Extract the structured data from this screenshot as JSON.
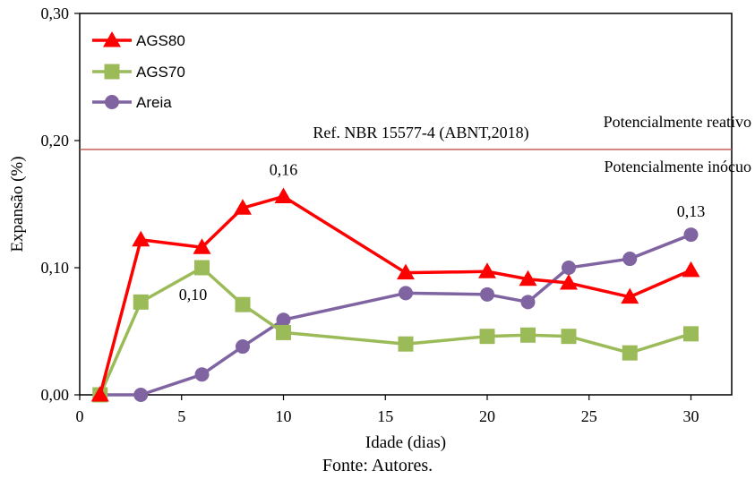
{
  "caption": "Fonte: Autores.",
  "colors": {
    "AGS80": "#ff0000",
    "AGS70": "#9bbb59",
    "Areia": "#8064a2",
    "reference_line": "#c0504d",
    "axis": "#000000"
  },
  "chart_data": {
    "type": "line",
    "title": "",
    "xlabel": "Idade (dias)",
    "ylabel": "Expansão (%)",
    "xlim": [
      0,
      32
    ],
    "ylim": [
      0,
      0.3
    ],
    "xticks": [
      0,
      5,
      10,
      15,
      20,
      25,
      30
    ],
    "yticks": [
      0,
      0.1,
      0.2,
      0.3
    ],
    "xtick_labels": [
      "0",
      "5",
      "10",
      "15",
      "20",
      "25",
      "30"
    ],
    "ytick_labels": [
      "0,00",
      "0,10",
      "0,20",
      "0,30"
    ],
    "grid": false,
    "legend": "top-left",
    "series": [
      {
        "name": "AGS80",
        "marker": "triangle",
        "x": [
          1,
          3,
          6,
          8,
          10,
          16,
          20,
          22,
          24,
          27,
          30
        ],
        "values": [
          0.0,
          0.122,
          0.116,
          0.147,
          0.156,
          0.096,
          0.097,
          0.091,
          0.088,
          0.077,
          0.098
        ]
      },
      {
        "name": "AGS70",
        "marker": "square",
        "x": [
          1,
          3,
          6,
          8,
          10,
          16,
          20,
          22,
          24,
          27,
          30
        ],
        "values": [
          0.0,
          0.073,
          0.1,
          0.071,
          0.049,
          0.04,
          0.046,
          0.047,
          0.046,
          0.033,
          0.048
        ]
      },
      {
        "name": "Areia",
        "marker": "circle",
        "x": [
          1,
          3,
          6,
          8,
          10,
          16,
          20,
          22,
          24,
          27,
          30
        ],
        "values": [
          0.0,
          0.0,
          0.016,
          0.038,
          0.059,
          0.08,
          0.079,
          0.073,
          0.1,
          0.107,
          0.126
        ]
      }
    ],
    "reference_line": {
      "y": 0.193,
      "label": "Ref. NBR 15577-4 (ABNT,2018)",
      "above_label": "Potencialmente reativo",
      "below_label": "Potencialmente inócuo"
    },
    "annotations": [
      {
        "text": "0,16",
        "series": "AGS80",
        "x": 10
      },
      {
        "text": "0,10",
        "series": "AGS70",
        "x": 6
      },
      {
        "text": "0,13",
        "series": "Areia",
        "x": 30
      }
    ]
  }
}
